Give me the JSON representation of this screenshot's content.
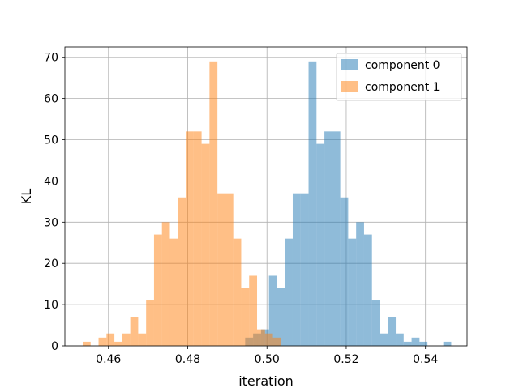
{
  "chart_data": {
    "type": "bar",
    "xlabel": "iteration",
    "ylabel": "KL",
    "xlim": [
      0.449,
      0.5505
    ],
    "ylim": [
      0,
      72.5
    ],
    "xticks": [
      0.46,
      0.48,
      0.5,
      0.52,
      0.54
    ],
    "xtick_labels": [
      "0.46",
      "0.48",
      "0.50",
      "0.52",
      "0.54"
    ],
    "yticks": [
      0,
      10,
      20,
      30,
      40,
      50,
      60,
      70
    ],
    "ytick_labels": [
      "0",
      "10",
      "20",
      "30",
      "40",
      "50",
      "60",
      "70"
    ],
    "grid": true,
    "legend": {
      "placement": "top-right"
    },
    "series": [
      {
        "name": "component 0",
        "color": "#1f77b4",
        "alpha": 0.5,
        "bins": [
          {
            "x0": 0.4945,
            "x1": 0.4965,
            "count": 2
          },
          {
            "x0": 0.4965,
            "x1": 0.4985,
            "count": 3
          },
          {
            "x0": 0.4985,
            "x1": 0.5005,
            "count": 4
          },
          {
            "x0": 0.5005,
            "x1": 0.5025,
            "count": 17
          },
          {
            "x0": 0.5025,
            "x1": 0.5045,
            "count": 14
          },
          {
            "x0": 0.5045,
            "x1": 0.5065,
            "count": 26
          },
          {
            "x0": 0.5065,
            "x1": 0.5085,
            "count": 37
          },
          {
            "x0": 0.5085,
            "x1": 0.5105,
            "count": 37
          },
          {
            "x0": 0.5105,
            "x1": 0.5125,
            "count": 69
          },
          {
            "x0": 0.5125,
            "x1": 0.5145,
            "count": 49
          },
          {
            "x0": 0.5145,
            "x1": 0.5165,
            "count": 52
          },
          {
            "x0": 0.5165,
            "x1": 0.5185,
            "count": 52
          },
          {
            "x0": 0.5185,
            "x1": 0.5205,
            "count": 36
          },
          {
            "x0": 0.5205,
            "x1": 0.5225,
            "count": 26
          },
          {
            "x0": 0.5225,
            "x1": 0.5245,
            "count": 30
          },
          {
            "x0": 0.5245,
            "x1": 0.5265,
            "count": 27
          },
          {
            "x0": 0.5265,
            "x1": 0.5285,
            "count": 11
          },
          {
            "x0": 0.5285,
            "x1": 0.5305,
            "count": 3
          },
          {
            "x0": 0.5305,
            "x1": 0.5325,
            "count": 7
          },
          {
            "x0": 0.5325,
            "x1": 0.5345,
            "count": 3
          },
          {
            "x0": 0.5345,
            "x1": 0.5365,
            "count": 1
          },
          {
            "x0": 0.5365,
            "x1": 0.5385,
            "count": 2
          },
          {
            "x0": 0.5385,
            "x1": 0.5405,
            "count": 1
          },
          {
            "x0": 0.5405,
            "x1": 0.5425,
            "count": 0
          },
          {
            "x0": 0.5425,
            "x1": 0.5445,
            "count": 0
          },
          {
            "x0": 0.5445,
            "x1": 0.5465,
            "count": 1
          }
        ]
      },
      {
        "name": "component 1",
        "color": "#ff7f0e",
        "alpha": 0.5,
        "bins": [
          {
            "x0": 0.4535,
            "x1": 0.4555,
            "count": 1
          },
          {
            "x0": 0.4555,
            "x1": 0.4575,
            "count": 0
          },
          {
            "x0": 0.4575,
            "x1": 0.4595,
            "count": 2
          },
          {
            "x0": 0.4595,
            "x1": 0.4615,
            "count": 3
          },
          {
            "x0": 0.4615,
            "x1": 0.4635,
            "count": 1
          },
          {
            "x0": 0.4635,
            "x1": 0.4655,
            "count": 3
          },
          {
            "x0": 0.4655,
            "x1": 0.4675,
            "count": 7
          },
          {
            "x0": 0.4675,
            "x1": 0.4695,
            "count": 3
          },
          {
            "x0": 0.4695,
            "x1": 0.4715,
            "count": 11
          },
          {
            "x0": 0.4715,
            "x1": 0.4735,
            "count": 27
          },
          {
            "x0": 0.4735,
            "x1": 0.4755,
            "count": 30
          },
          {
            "x0": 0.4755,
            "x1": 0.4775,
            "count": 26
          },
          {
            "x0": 0.4775,
            "x1": 0.4795,
            "count": 36
          },
          {
            "x0": 0.4795,
            "x1": 0.4815,
            "count": 52
          },
          {
            "x0": 0.4815,
            "x1": 0.4835,
            "count": 52
          },
          {
            "x0": 0.4835,
            "x1": 0.4855,
            "count": 49
          },
          {
            "x0": 0.4855,
            "x1": 0.4875,
            "count": 69
          },
          {
            "x0": 0.4875,
            "x1": 0.4895,
            "count": 37
          },
          {
            "x0": 0.4895,
            "x1": 0.4915,
            "count": 37
          },
          {
            "x0": 0.4915,
            "x1": 0.4935,
            "count": 26
          },
          {
            "x0": 0.4935,
            "x1": 0.4955,
            "count": 14
          },
          {
            "x0": 0.4955,
            "x1": 0.4975,
            "count": 17
          },
          {
            "x0": 0.4975,
            "x1": 0.4995,
            "count": 4
          },
          {
            "x0": 0.4995,
            "x1": 0.5015,
            "count": 3
          },
          {
            "x0": 0.5015,
            "x1": 0.5035,
            "count": 2
          }
        ]
      }
    ]
  }
}
